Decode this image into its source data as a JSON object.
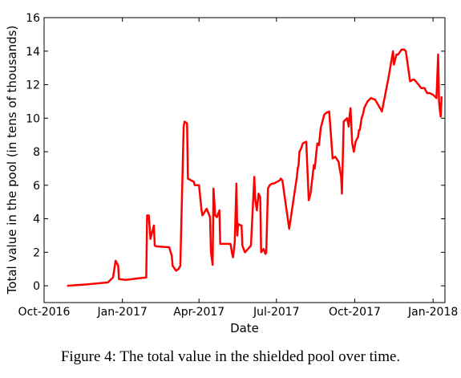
{
  "chart_data": {
    "type": "line",
    "xlabel": "Date",
    "ylabel": "Total value in the pool (in tens of thousands)",
    "x_axis_type": "date",
    "xlim": [
      "2016-10-01",
      "2018-01-15"
    ],
    "ylim": [
      -1,
      16
    ],
    "x_ticks": [
      {
        "date": "2016-10-01",
        "label": "Oct-2016"
      },
      {
        "date": "2017-01-01",
        "label": "Jan-2017"
      },
      {
        "date": "2017-04-01",
        "label": "Apr-2017"
      },
      {
        "date": "2017-07-01",
        "label": "Jul-2017"
      },
      {
        "date": "2017-10-01",
        "label": "Oct-2017"
      },
      {
        "date": "2018-01-01",
        "label": "Jan-2018"
      }
    ],
    "y_ticks": [
      {
        "value": 0,
        "label": "0"
      },
      {
        "value": 2,
        "label": "2"
      },
      {
        "value": 4,
        "label": "4"
      },
      {
        "value": 6,
        "label": "6"
      },
      {
        "value": 8,
        "label": "8"
      },
      {
        "value": 10,
        "label": "10"
      },
      {
        "value": 12,
        "label": "12"
      },
      {
        "value": 14,
        "label": "14"
      },
      {
        "value": 16,
        "label": "16"
      }
    ],
    "grid": false,
    "series": [
      {
        "color": "#ff0000",
        "x": [
          "2016-10-28",
          "2016-11-20",
          "2016-12-15",
          "2016-12-21",
          "2016-12-24",
          "2016-12-27",
          "2016-12-28",
          "2017-01-05",
          "2017-01-20",
          "2017-01-29",
          "2017-01-30",
          "2017-02-01",
          "2017-02-03",
          "2017-02-07",
          "2017-02-08",
          "2017-02-10",
          "2017-02-25",
          "2017-02-28",
          "2017-03-01",
          "2017-03-05",
          "2017-03-08",
          "2017-03-10",
          "2017-03-14",
          "2017-03-15",
          "2017-03-18",
          "2017-03-19",
          "2017-03-26",
          "2017-03-27",
          "2017-04-01",
          "2017-04-04",
          "2017-04-05",
          "2017-04-10",
          "2017-04-14",
          "2017-04-15",
          "2017-04-17",
          "2017-04-18",
          "2017-04-20",
          "2017-04-22",
          "2017-04-25",
          "2017-04-26",
          "2017-05-08",
          "2017-05-10",
          "2017-05-11",
          "2017-05-13",
          "2017-05-15",
          "2017-05-16",
          "2017-05-17",
          "2017-05-20",
          "2017-05-21",
          "2017-05-22",
          "2017-05-25",
          "2017-06-01",
          "2017-06-05",
          "2017-06-06",
          "2017-06-08",
          "2017-06-10",
          "2017-06-12",
          "2017-06-13",
          "2017-06-16",
          "2017-06-18",
          "2017-06-19",
          "2017-06-21",
          "2017-06-22",
          "2017-06-23",
          "2017-06-26",
          "2017-06-28",
          "2017-07-05",
          "2017-07-06",
          "2017-07-08",
          "2017-07-16",
          "2017-07-25",
          "2017-07-26",
          "2017-07-27",
          "2017-07-28",
          "2017-07-30",
          "2017-08-01",
          "2017-08-05",
          "2017-08-08",
          "2017-08-10",
          "2017-08-14",
          "2017-08-15",
          "2017-08-16",
          "2017-08-18",
          "2017-08-20",
          "2017-08-22",
          "2017-08-26",
          "2017-08-28",
          "2017-09-01",
          "2017-09-05",
          "2017-09-08",
          "2017-09-12",
          "2017-09-15",
          "2017-09-16",
          "2017-09-18",
          "2017-09-22",
          "2017-09-24",
          "2017-09-25",
          "2017-09-26",
          "2017-09-28",
          "2017-09-30",
          "2017-10-02",
          "2017-10-05",
          "2017-10-06",
          "2017-10-07",
          "2017-10-09",
          "2017-10-11",
          "2017-10-12",
          "2017-10-16",
          "2017-10-20",
          "2017-10-25",
          "2017-11-02",
          "2017-11-10",
          "2017-11-15",
          "2017-11-16",
          "2017-11-19",
          "2017-11-21",
          "2017-11-25",
          "2017-11-28",
          "2017-11-30",
          "2017-12-05",
          "2017-12-08",
          "2017-12-10",
          "2017-12-15",
          "2017-12-18",
          "2017-12-22",
          "2017-12-25",
          "2017-12-28",
          "2018-01-01",
          "2018-01-03",
          "2018-01-05",
          "2018-01-07",
          "2018-01-08",
          "2018-01-09",
          "2018-01-10",
          "2018-01-11"
        ],
        "y": [
          0,
          0.08,
          0.2,
          0.5,
          1.5,
          1.2,
          0.4,
          0.35,
          0.45,
          0.5,
          4.2,
          4.2,
          2.8,
          3.6,
          2.4,
          2.35,
          2.3,
          1.8,
          1.2,
          0.9,
          1.0,
          1.2,
          9.5,
          9.8,
          9.7,
          6.4,
          6.2,
          6.0,
          6.0,
          4.5,
          4.2,
          4.6,
          4.1,
          2.0,
          1.25,
          5.8,
          4.2,
          4.1,
          4.5,
          2.5,
          2.5,
          1.9,
          1.7,
          2.6,
          6.1,
          3.0,
          3.7,
          3.6,
          3.6,
          2.4,
          2.0,
          2.4,
          6.5,
          5.2,
          4.5,
          5.5,
          5.3,
          2.0,
          2.2,
          1.9,
          2.0,
          5.8,
          5.9,
          6.0,
          6.1,
          6.1,
          6.3,
          6.4,
          6.3,
          3.4,
          6.5,
          7.0,
          7.2,
          8.0,
          8.2,
          8.5,
          8.6,
          5.1,
          5.5,
          7.2,
          7.0,
          7.5,
          8.5,
          8.4,
          9.4,
          10.2,
          10.3,
          10.4,
          7.6,
          7.7,
          7.4,
          6.5,
          5.5,
          9.8,
          10.0,
          9.5,
          10.2,
          10.6,
          8.5,
          8.0,
          8.6,
          8.9,
          9.3,
          9.3,
          10.0,
          10.3,
          10.6,
          11.0,
          11.2,
          11.1,
          10.4,
          12.5,
          14.0,
          13.2,
          13.8,
          13.8,
          14.1,
          14.1,
          14.0,
          12.2,
          12.3,
          12.3,
          12.0,
          11.8,
          11.8,
          11.5,
          11.5,
          11.4,
          11.3,
          11.2,
          13.8,
          11.0,
          10.5,
          10.1,
          11.3
        ]
      }
    ]
  },
  "caption": "Figure 4: The total value in the shielded pool over time."
}
